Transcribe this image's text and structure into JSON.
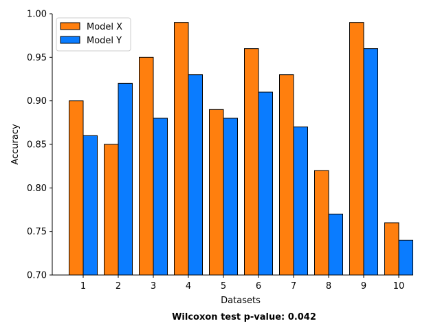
{
  "chart_data": {
    "type": "bar",
    "categories": [
      "1",
      "2",
      "3",
      "4",
      "5",
      "6",
      "7",
      "8",
      "9",
      "10"
    ],
    "series": [
      {
        "name": "Model X",
        "color": "#ff7f0e",
        "values": [
          0.9,
          0.85,
          0.95,
          0.99,
          0.89,
          0.96,
          0.93,
          0.82,
          0.99,
          0.76
        ]
      },
      {
        "name": "Model Y",
        "color": "#0a7cff",
        "values": [
          0.86,
          0.92,
          0.88,
          0.93,
          0.88,
          0.91,
          0.87,
          0.77,
          0.96,
          0.74
        ]
      }
    ],
    "xlabel": "Datasets",
    "ylabel": "Accuracy",
    "ylim": [
      0.7,
      1.0
    ],
    "yticks": [
      "0.70",
      "0.75",
      "0.80",
      "0.85",
      "0.90",
      "0.95",
      "1.00"
    ],
    "grid": false,
    "legend": "top-left",
    "annotation": "Wilcoxon test p-value: 0.042"
  }
}
